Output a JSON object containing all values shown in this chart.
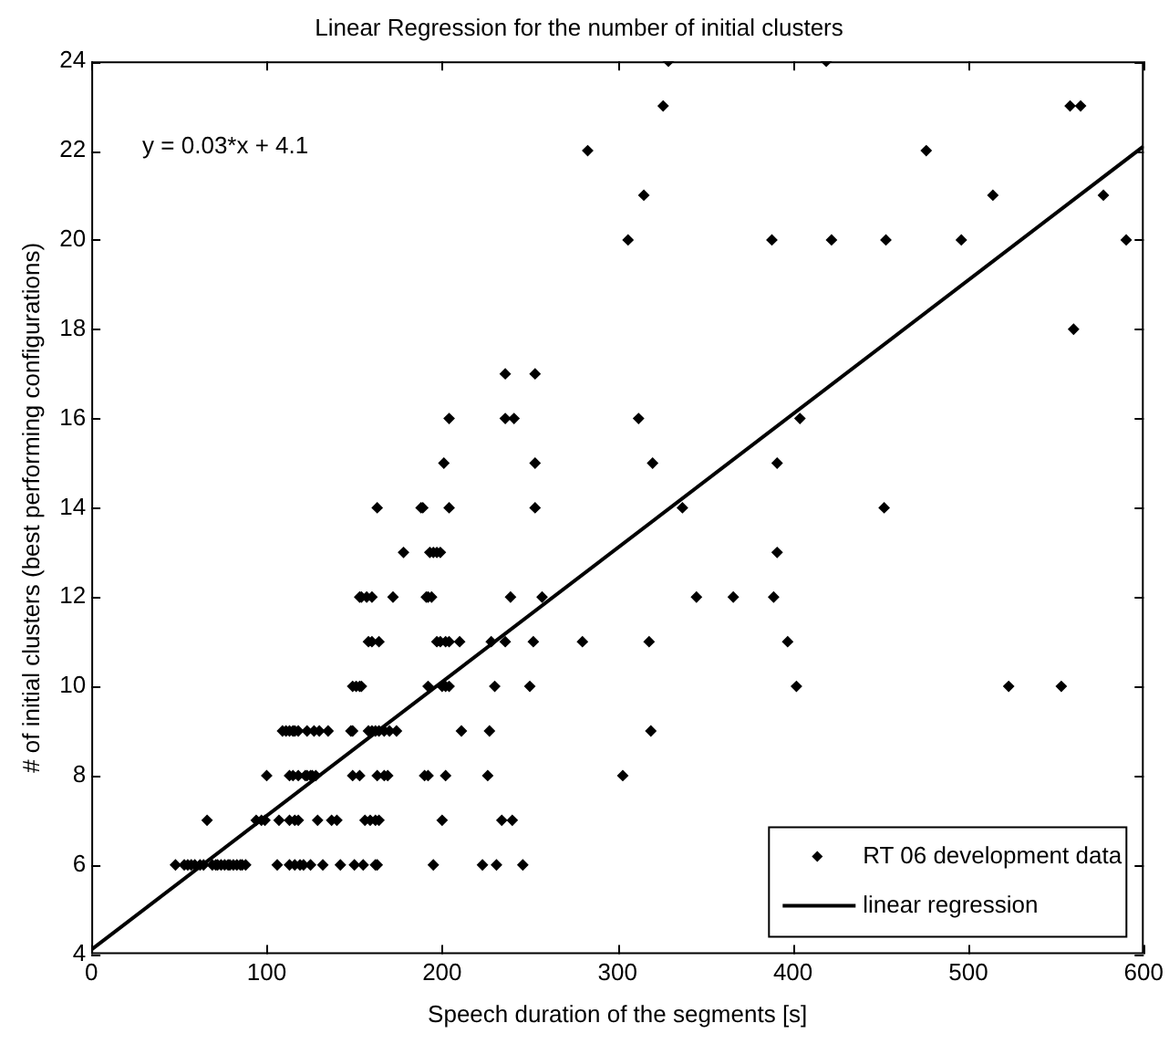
{
  "chart_data": {
    "type": "scatter",
    "title": "Linear Regression for the number of initial clusters",
    "xlabel": "Speech duration of the segments [s]",
    "ylabel": "# of initial clusters (best performing configurations)",
    "annotations": [
      "y = 0.03*x + 4.1"
    ],
    "xlim": [
      0,
      600
    ],
    "xticks": [
      0,
      100,
      200,
      300,
      400,
      500,
      600
    ],
    "ylim": [
      4,
      24
    ],
    "yticks": [
      4,
      6,
      8,
      10,
      12,
      14,
      16,
      18,
      20,
      22,
      24
    ],
    "grid": false,
    "legend": "bottom right",
    "series": [
      {
        "name": "RT 06 development data",
        "marker": "diamond",
        "color": "#000000",
        "x": [
          48,
          53,
          55,
          57,
          59,
          62,
          64,
          69,
          71,
          72,
          74,
          76,
          78,
          79,
          81,
          83,
          85,
          86,
          88,
          106,
          113,
          116,
          119,
          121,
          125,
          132,
          142,
          150,
          155,
          162,
          163,
          195,
          223,
          231,
          246,
          66,
          94,
          97,
          99,
          107,
          113,
          116,
          118,
          129,
          137,
          140,
          156,
          159,
          162,
          164,
          200,
          234,
          240,
          100,
          113,
          115,
          118,
          122,
          123,
          125,
          126,
          128,
          149,
          153,
          163,
          167,
          169,
          190,
          192,
          202,
          226,
          303,
          109,
          111,
          113,
          115,
          116,
          118,
          123,
          127,
          130,
          135,
          148,
          149,
          158,
          160,
          162,
          164,
          167,
          170,
          174,
          211,
          227,
          319,
          149,
          151,
          153,
          154,
          192,
          200,
          202,
          204,
          230,
          250,
          402,
          523,
          553,
          158,
          160,
          164,
          197,
          199,
          202,
          204,
          210,
          228,
          236,
          252,
          280,
          318,
          397,
          153,
          154,
          157,
          160,
          172,
          191,
          192,
          194,
          239,
          257,
          345,
          366,
          389,
          178,
          193,
          195,
          197,
          199,
          391,
          163,
          188,
          189,
          204,
          253,
          337,
          452,
          201,
          253,
          320,
          391,
          204,
          236,
          241,
          312,
          404,
          236,
          253,
          560,
          306,
          388,
          422,
          453,
          496,
          590,
          315,
          514,
          577,
          283,
          476,
          326,
          558,
          564,
          329,
          419
        ],
        "values": [
          6,
          6,
          6,
          6,
          6,
          6,
          6,
          6,
          6,
          6,
          6,
          6,
          6,
          6,
          6,
          6,
          6,
          6,
          6,
          6,
          6,
          6,
          6,
          6,
          6,
          6,
          6,
          6,
          6,
          6,
          6,
          6,
          6,
          6,
          6,
          7,
          7,
          7,
          7,
          7,
          7,
          7,
          7,
          7,
          7,
          7,
          7,
          7,
          7,
          7,
          7,
          7,
          7,
          8,
          8,
          8,
          8,
          8,
          8,
          8,
          8,
          8,
          8,
          8,
          8,
          8,
          8,
          8,
          8,
          8,
          8,
          8,
          9,
          9,
          9,
          9,
          9,
          9,
          9,
          9,
          9,
          9,
          9,
          9,
          9,
          9,
          9,
          9,
          9,
          9,
          9,
          9,
          9,
          9,
          10,
          10,
          10,
          10,
          10,
          10,
          10,
          10,
          10,
          10,
          10,
          10,
          10,
          11,
          11,
          11,
          11,
          11,
          11,
          11,
          11,
          11,
          11,
          11,
          11,
          11,
          11,
          12,
          12,
          12,
          12,
          12,
          12,
          12,
          12,
          12,
          12,
          12,
          12,
          12,
          13,
          13,
          13,
          13,
          13,
          13,
          14,
          14,
          14,
          14,
          14,
          14,
          14,
          15,
          15,
          15,
          15,
          16,
          16,
          16,
          16,
          16,
          17,
          17,
          18,
          20,
          20,
          20,
          20,
          20,
          20,
          21,
          21,
          21,
          22,
          22,
          23,
          23,
          23,
          24,
          24
        ]
      },
      {
        "name": "linear regression",
        "type": "line",
        "marker": "none",
        "color": "#000000",
        "x": [
          0,
          600
        ],
        "values": [
          4.1,
          22.1
        ]
      }
    ]
  }
}
